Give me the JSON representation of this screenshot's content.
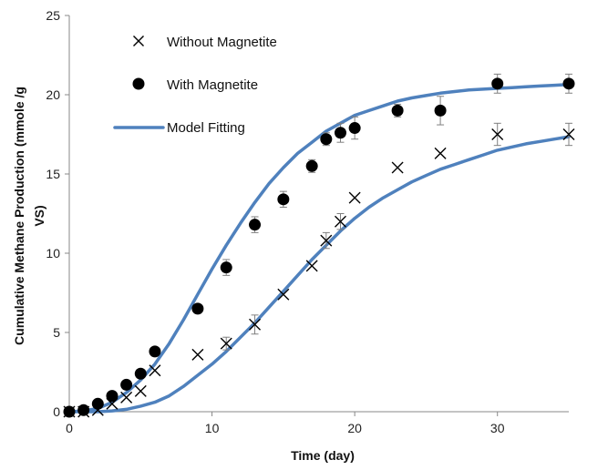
{
  "chart_data": {
    "type": "scatter",
    "xlabel": "Time (day)",
    "ylabel_line1": "Cumulative Methane Production (mmole /g",
    "ylabel_line2": "VS)",
    "xlim": [
      0,
      35
    ],
    "ylim": [
      0,
      25
    ],
    "x_ticks": [
      0,
      10,
      20,
      30
    ],
    "y_ticks": [
      0,
      5,
      10,
      15,
      20,
      25
    ],
    "grid": false,
    "legend_position": "top-left",
    "series": [
      {
        "name": "Without Magnetite",
        "marker": "x",
        "color": "#000000",
        "x": [
          0,
          1,
          2,
          3,
          4,
          5,
          6,
          9,
          11,
          13,
          15,
          17,
          18,
          19,
          20,
          23,
          26,
          30,
          35
        ],
        "y": [
          0,
          0,
          0.1,
          0.5,
          0.9,
          1.3,
          2.6,
          3.6,
          4.3,
          5.5,
          7.4,
          9.2,
          10.8,
          12.0,
          13.5,
          15.4,
          16.3,
          17.5,
          17.5
        ],
        "err": [
          0,
          0,
          0,
          0,
          0,
          0,
          0,
          0,
          0.4,
          0.6,
          0,
          0,
          0.5,
          0.5,
          0,
          0,
          0,
          0.7,
          0.7
        ]
      },
      {
        "name": "With Magnetite",
        "marker": "circle",
        "color": "#000000",
        "x": [
          0,
          1,
          2,
          3,
          4,
          5,
          6,
          9,
          11,
          13,
          15,
          17,
          18,
          19,
          20,
          23,
          26,
          30,
          35
        ],
        "y": [
          0,
          0.1,
          0.5,
          1.0,
          1.7,
          2.4,
          3.8,
          6.5,
          9.1,
          11.8,
          13.4,
          15.5,
          17.2,
          17.6,
          17.9,
          19.0,
          19.0,
          20.7,
          20.7
        ],
        "err": [
          0,
          0,
          0,
          0,
          0,
          0,
          0,
          0,
          0.5,
          0.5,
          0.5,
          0.4,
          0.4,
          0.6,
          0.7,
          0.4,
          0.9,
          0.6,
          0.6
        ]
      },
      {
        "name": "Model Fitting",
        "marker": "line",
        "color": "#4f81bd",
        "curves": [
          {
            "x": [
              0,
              1,
              2,
              3,
              4,
              5,
              6,
              7,
              8,
              9,
              10,
              11,
              12,
              13,
              14,
              15,
              16,
              17,
              18,
              19,
              20,
              21,
              22,
              23,
              24,
              25,
              26,
              27,
              28,
              29,
              30,
              31,
              32,
              33,
              34,
              35
            ],
            "y": [
              0,
              0.05,
              0.2,
              0.6,
              1.2,
              2.0,
              3.0,
              4.3,
              5.8,
              7.4,
              9.0,
              10.5,
              11.9,
              13.2,
              14.4,
              15.4,
              16.3,
              17.0,
              17.7,
              18.2,
              18.7,
              19.0,
              19.3,
              19.6,
              19.8,
              19.95,
              20.1,
              20.2,
              20.3,
              20.35,
              20.4,
              20.45,
              20.5,
              20.55,
              20.6,
              20.65
            ]
          },
          {
            "x": [
              0,
              1,
              2,
              3,
              4,
              5,
              6,
              7,
              8,
              9,
              10,
              11,
              12,
              13,
              14,
              15,
              16,
              17,
              18,
              19,
              20,
              21,
              22,
              23,
              24,
              25,
              26,
              27,
              28,
              29,
              30,
              31,
              32,
              33,
              34,
              35
            ],
            "y": [
              0,
              0,
              0,
              0.05,
              0.15,
              0.35,
              0.6,
              1.0,
              1.6,
              2.3,
              3.0,
              3.8,
              4.7,
              5.6,
              6.6,
              7.6,
              8.6,
              9.6,
              10.5,
              11.4,
              12.2,
              12.9,
              13.5,
              14.0,
              14.5,
              14.9,
              15.3,
              15.6,
              15.9,
              16.2,
              16.5,
              16.7,
              16.9,
              17.05,
              17.2,
              17.35
            ]
          }
        ]
      }
    ]
  }
}
